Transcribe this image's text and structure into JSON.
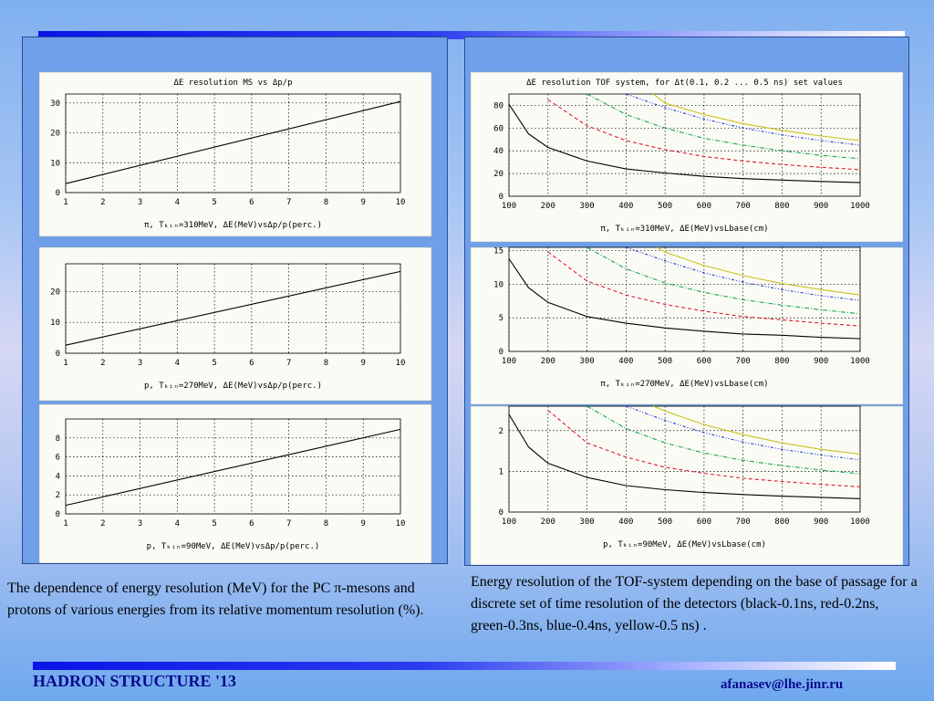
{
  "captions": {
    "left": "The dependence of energy resolution (MeV) for the PC π-mesons and protons of various energies from its relative momentum resolution (%).",
    "right": "Energy resolution of the TOF-system depending on the base of passage for a discrete set of time resolution of the detectors (black-0.1ns, red-0.2ns, green-0.3ns, blue-0.4ns, yellow-0.5 ns) ."
  },
  "footer": {
    "left": "HADRON STRUCTURE '13",
    "right": "afanasev@lhe.jinr.ru"
  },
  "colors": {
    "black": "#000000",
    "red": "#e0182a",
    "green": "#1aa84a",
    "blue": "#1a3ad6",
    "yellow": "#c8c21a"
  },
  "chart_data": [
    {
      "type": "line",
      "title": "ΔE resolution MS vs Δp/p",
      "xlabel": "π, Tₖᵢₙ=310MeV, ΔE(MeV)vsΔp/p(perc.)",
      "xlim": [
        1,
        10
      ],
      "ylim": [
        0,
        33
      ],
      "xticks": [
        "1",
        "2",
        "3",
        "4",
        "5",
        "6",
        "7",
        "8",
        "9",
        "10"
      ],
      "yticks": [
        0,
        10,
        20,
        30
      ],
      "series": [
        {
          "color": "#000000",
          "x": [
            1,
            10
          ],
          "y": [
            3,
            30.5
          ]
        }
      ]
    },
    {
      "type": "line",
      "title": "",
      "xlabel": "p, Tₖᵢₙ=270MeV, ΔE(MeV)vsΔp/p(perc.)",
      "xlim": [
        1,
        10
      ],
      "ylim": [
        0,
        29
      ],
      "xticks": [
        "1",
        "2",
        "3",
        "4",
        "5",
        "6",
        "7",
        "8",
        "9",
        "10"
      ],
      "yticks": [
        0,
        10,
        20
      ],
      "series": [
        {
          "color": "#000000",
          "x": [
            1,
            10
          ],
          "y": [
            2.6,
            26.5
          ]
        }
      ]
    },
    {
      "type": "line",
      "title": "",
      "xlabel": "p, Tₖᵢₙ=90MeV, ΔE(MeV)vsΔp/p(perc.)",
      "xlim": [
        1,
        10
      ],
      "ylim": [
        0,
        10
      ],
      "xticks": [
        "1",
        "2",
        "3",
        "4",
        "5",
        "6",
        "7",
        "8",
        "9",
        "10"
      ],
      "yticks": [
        0,
        2,
        4,
        6,
        8
      ],
      "series": [
        {
          "color": "#000000",
          "x": [
            1,
            10
          ],
          "y": [
            0.9,
            8.9
          ]
        }
      ]
    },
    {
      "type": "line",
      "title": "ΔE resolution TOF system, for Δt(0.1, 0.2 ... 0.5 ns) set values",
      "xlabel": "π, Tₖᵢₙ=310MeV, ΔE(MeV)vsLbase(cm)",
      "xlim": [
        100,
        1000
      ],
      "ylim": [
        0,
        90
      ],
      "xticks": [
        "100",
        "200",
        "300",
        "400",
        "500",
        "600",
        "700",
        "800",
        "900",
        "1000"
      ],
      "yticks": [
        0,
        20,
        40,
        60,
        80
      ],
      "series": [
        {
          "color": "#000000",
          "style": "solid",
          "x": [
            100,
            150,
            200,
            300,
            400,
            500,
            600,
            700,
            800,
            900,
            1000
          ],
          "y": [
            81,
            55,
            43,
            31,
            24,
            20.5,
            17.5,
            15.5,
            14.2,
            13,
            12
          ]
        },
        {
          "color": "#e0182a",
          "style": "dashed",
          "x": [
            200,
            300,
            400,
            500,
            600,
            700,
            800,
            900,
            1000
          ],
          "y": [
            85,
            62,
            49,
            41,
            35,
            31,
            28,
            25.5,
            23.5
          ]
        },
        {
          "color": "#1aa84a",
          "style": "dashdot",
          "x": [
            300,
            400,
            500,
            600,
            700,
            800,
            900,
            1000
          ],
          "y": [
            90,
            72,
            60,
            51,
            45,
            40,
            36,
            33
          ]
        },
        {
          "color": "#1a3ad6",
          "style": "dashdot2",
          "x": [
            400,
            500,
            600,
            700,
            800,
            900,
            1000
          ],
          "y": [
            90,
            78,
            68,
            60,
            54,
            49,
            45
          ]
        },
        {
          "color": "#c8c21a",
          "style": "solid",
          "x": [
            470,
            500,
            600,
            700,
            800,
            900,
            1000
          ],
          "y": [
            90,
            82,
            72,
            64,
            58,
            53,
            49
          ]
        }
      ]
    },
    {
      "type": "line",
      "title": "",
      "xlabel": "π, Tₖᵢₙ=270MeV, ΔE(MeV)vsLbase(cm)",
      "xlim": [
        100,
        1000
      ],
      "ylim": [
        0,
        15.5
      ],
      "xticks": [
        "100",
        "200",
        "300",
        "400",
        "500",
        "600",
        "700",
        "800",
        "900",
        "1000"
      ],
      "yticks": [
        0,
        5,
        10,
        15
      ],
      "series": [
        {
          "color": "#000000",
          "style": "solid",
          "x": [
            100,
            150,
            200,
            300,
            400,
            500,
            600,
            700,
            800,
            900,
            1000
          ],
          "y": [
            13.8,
            9.5,
            7.3,
            5.2,
            4.2,
            3.5,
            3.0,
            2.6,
            2.4,
            2.1,
            1.9
          ]
        },
        {
          "color": "#e0182a",
          "style": "dashed",
          "x": [
            200,
            300,
            400,
            500,
            600,
            700,
            800,
            900,
            1000
          ],
          "y": [
            14.8,
            10.5,
            8.4,
            7.0,
            6.0,
            5.2,
            4.7,
            4.2,
            3.8
          ]
        },
        {
          "color": "#1aa84a",
          "style": "dashdot",
          "x": [
            300,
            400,
            500,
            600,
            700,
            800,
            900,
            1000
          ],
          "y": [
            15.5,
            12.3,
            10.2,
            8.8,
            7.7,
            6.9,
            6.2,
            5.6
          ]
        },
        {
          "color": "#1a3ad6",
          "style": "dashdot2",
          "x": [
            400,
            500,
            600,
            700,
            800,
            900,
            1000
          ],
          "y": [
            15.5,
            13.5,
            11.7,
            10.3,
            9.2,
            8.3,
            7.6
          ]
        },
        {
          "color": "#c8c21a",
          "style": "solid",
          "x": [
            480,
            500,
            600,
            700,
            800,
            900,
            1000
          ],
          "y": [
            15.5,
            14.8,
            12.8,
            11.3,
            10.1,
            9.2,
            8.4
          ]
        }
      ]
    },
    {
      "type": "line",
      "title": "",
      "xlabel": "p, Tₖᵢₙ=90MeV, ΔE(MeV)vsLbase(cm)",
      "xlim": [
        100,
        1000
      ],
      "ylim": [
        0,
        2.6
      ],
      "xticks": [
        "100",
        "200",
        "300",
        "400",
        "500",
        "600",
        "700",
        "800",
        "900",
        "1000"
      ],
      "yticks": [
        0,
        1,
        2
      ],
      "series": [
        {
          "color": "#000000",
          "style": "solid",
          "x": [
            100,
            150,
            200,
            300,
            400,
            500,
            600,
            700,
            800,
            900,
            1000
          ],
          "y": [
            2.4,
            1.6,
            1.2,
            0.85,
            0.65,
            0.55,
            0.48,
            0.43,
            0.39,
            0.36,
            0.33
          ]
        },
        {
          "color": "#e0182a",
          "style": "dashed",
          "x": [
            200,
            300,
            400,
            500,
            600,
            700,
            800,
            900,
            1000
          ],
          "y": [
            2.5,
            1.7,
            1.35,
            1.1,
            0.95,
            0.83,
            0.75,
            0.68,
            0.62
          ]
        },
        {
          "color": "#1aa84a",
          "style": "dashdot",
          "x": [
            300,
            400,
            500,
            600,
            700,
            800,
            900,
            1000
          ],
          "y": [
            2.6,
            2.05,
            1.7,
            1.45,
            1.27,
            1.14,
            1.03,
            0.94
          ]
        },
        {
          "color": "#1a3ad6",
          "style": "dashdot2",
          "x": [
            400,
            500,
            600,
            700,
            800,
            900,
            1000
          ],
          "y": [
            2.6,
            2.25,
            1.95,
            1.72,
            1.54,
            1.4,
            1.28
          ]
        },
        {
          "color": "#c8c21a",
          "style": "solid",
          "x": [
            470,
            500,
            600,
            700,
            800,
            900,
            1000
          ],
          "y": [
            2.6,
            2.48,
            2.15,
            1.9,
            1.7,
            1.54,
            1.42
          ]
        }
      ]
    }
  ]
}
